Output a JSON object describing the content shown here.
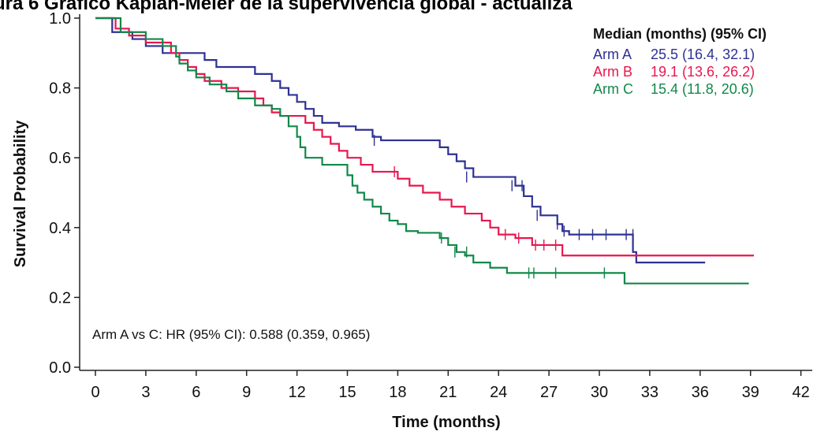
{
  "page_title": "ura 6        Gráfico Kaplan-Meier de la supervivencia global - actualiza",
  "chart_data": {
    "type": "line",
    "xlabel": "Time (months)",
    "ylabel": "Survival Probability",
    "xlim": [
      -1,
      43
    ],
    "ylim": [
      -0.02,
      1.02
    ],
    "x_ticks": [
      0,
      3,
      6,
      9,
      12,
      15,
      18,
      21,
      24,
      27,
      30,
      33,
      36,
      39,
      42
    ],
    "y_ticks": [
      0.0,
      0.2,
      0.4,
      0.6,
      0.8,
      1.0
    ],
    "y_tick_labels": [
      "0.0",
      "0.2",
      "0.4",
      "0.6",
      "0.8",
      "1.0"
    ],
    "legend": {
      "title": "Median (months) (95% CI)",
      "position": "top-right"
    },
    "annotation": "Arm A vs C: HR (95% CI): 0.588 (0.359, 0.965)",
    "series": [
      {
        "name": "Arm A",
        "median_label": "25.5 (16.4, 32.1)",
        "color": "#2e3192",
        "steps": [
          [
            0,
            1.0
          ],
          [
            1.0,
            0.96
          ],
          [
            2.2,
            0.94
          ],
          [
            3.0,
            0.92
          ],
          [
            4.0,
            0.9
          ],
          [
            5.5,
            0.9
          ],
          [
            6.5,
            0.88
          ],
          [
            7.2,
            0.86
          ],
          [
            8.0,
            0.86
          ],
          [
            9.5,
            0.84
          ],
          [
            10.5,
            0.82
          ],
          [
            11.0,
            0.8
          ],
          [
            11.5,
            0.78
          ],
          [
            12.0,
            0.76
          ],
          [
            12.5,
            0.74
          ],
          [
            13.0,
            0.72
          ],
          [
            13.5,
            0.7
          ],
          [
            14.5,
            0.69
          ],
          [
            15.5,
            0.68
          ],
          [
            16.5,
            0.66
          ],
          [
            17.0,
            0.65
          ],
          [
            20.5,
            0.63
          ],
          [
            21.0,
            0.61
          ],
          [
            21.5,
            0.59
          ],
          [
            22.0,
            0.57
          ],
          [
            22.5,
            0.545
          ],
          [
            25.0,
            0.52
          ],
          [
            25.5,
            0.49
          ],
          [
            26.0,
            0.46
          ],
          [
            26.5,
            0.435
          ],
          [
            27.5,
            0.41
          ],
          [
            27.8,
            0.39
          ],
          [
            28.2,
            0.38
          ],
          [
            32.0,
            0.33
          ],
          [
            32.2,
            0.3
          ],
          [
            36.3,
            0.3
          ]
        ],
        "censor": [
          [
            16.6,
            0.65
          ],
          [
            22.1,
            0.545
          ],
          [
            24.8,
            0.52
          ],
          [
            25.4,
            0.52
          ],
          [
            26.3,
            0.435
          ],
          [
            27.5,
            0.41
          ],
          [
            27.9,
            0.39
          ],
          [
            28.8,
            0.38
          ],
          [
            29.6,
            0.38
          ],
          [
            30.4,
            0.38
          ],
          [
            31.6,
            0.38
          ],
          [
            32.0,
            0.38
          ]
        ]
      },
      {
        "name": "Arm B",
        "median_label": "19.1 (13.6, 26.2)",
        "color": "#e8174f",
        "steps": [
          [
            0,
            1.0
          ],
          [
            1.2,
            0.97
          ],
          [
            2.0,
            0.95
          ],
          [
            3.0,
            0.93
          ],
          [
            4.5,
            0.9
          ],
          [
            5.0,
            0.88
          ],
          [
            5.5,
            0.86
          ],
          [
            6.0,
            0.84
          ],
          [
            6.5,
            0.82
          ],
          [
            7.5,
            0.8
          ],
          [
            8.5,
            0.79
          ],
          [
            9.5,
            0.77
          ],
          [
            10.0,
            0.75
          ],
          [
            10.5,
            0.73
          ],
          [
            11.0,
            0.72
          ],
          [
            12.5,
            0.7
          ],
          [
            13.0,
            0.68
          ],
          [
            13.5,
            0.66
          ],
          [
            14.0,
            0.64
          ],
          [
            14.5,
            0.62
          ],
          [
            15.0,
            0.6
          ],
          [
            15.8,
            0.58
          ],
          [
            16.5,
            0.56
          ],
          [
            18.0,
            0.54
          ],
          [
            18.7,
            0.52
          ],
          [
            19.5,
            0.5
          ],
          [
            20.5,
            0.48
          ],
          [
            21.2,
            0.46
          ],
          [
            22.0,
            0.44
          ],
          [
            23.0,
            0.42
          ],
          [
            23.5,
            0.4
          ],
          [
            24.0,
            0.38
          ],
          [
            25.0,
            0.37
          ],
          [
            26.0,
            0.35
          ],
          [
            26.5,
            0.35
          ],
          [
            27.8,
            0.32
          ],
          [
            39.2,
            0.32
          ]
        ],
        "censor": [
          [
            17.8,
            0.56
          ],
          [
            24.4,
            0.38
          ],
          [
            25.2,
            0.37
          ],
          [
            26.2,
            0.35
          ],
          [
            26.7,
            0.35
          ],
          [
            27.4,
            0.35
          ]
        ]
      },
      {
        "name": "Arm C",
        "median_label": "15.4 (11.8, 20.6)",
        "color": "#12884a",
        "steps": [
          [
            0,
            1.0
          ],
          [
            1.5,
            0.96
          ],
          [
            3.0,
            0.94
          ],
          [
            4.0,
            0.92
          ],
          [
            4.8,
            0.89
          ],
          [
            5.0,
            0.87
          ],
          [
            5.5,
            0.85
          ],
          [
            6.0,
            0.83
          ],
          [
            6.8,
            0.81
          ],
          [
            7.8,
            0.79
          ],
          [
            8.5,
            0.77
          ],
          [
            9.5,
            0.75
          ],
          [
            10.5,
            0.74
          ],
          [
            11.0,
            0.72
          ],
          [
            11.5,
            0.69
          ],
          [
            12.0,
            0.66
          ],
          [
            12.2,
            0.63
          ],
          [
            12.5,
            0.6
          ],
          [
            13.5,
            0.58
          ],
          [
            14.5,
            0.58
          ],
          [
            15.0,
            0.55
          ],
          [
            15.3,
            0.52
          ],
          [
            15.6,
            0.5
          ],
          [
            16.0,
            0.48
          ],
          [
            16.5,
            0.46
          ],
          [
            17.0,
            0.44
          ],
          [
            17.5,
            0.42
          ],
          [
            18.0,
            0.41
          ],
          [
            18.5,
            0.39
          ],
          [
            19.2,
            0.385
          ],
          [
            20.5,
            0.37
          ],
          [
            21.0,
            0.35
          ],
          [
            21.5,
            0.33
          ],
          [
            22.0,
            0.32
          ],
          [
            22.5,
            0.3
          ],
          [
            23.5,
            0.285
          ],
          [
            24.5,
            0.27
          ],
          [
            28.5,
            0.27
          ],
          [
            31.5,
            0.24
          ],
          [
            38.9,
            0.24
          ]
        ],
        "censor": [
          [
            20.6,
            0.37
          ],
          [
            21.4,
            0.33
          ],
          [
            22.1,
            0.33
          ],
          [
            25.8,
            0.27
          ],
          [
            26.1,
            0.27
          ],
          [
            27.4,
            0.27
          ],
          [
            30.3,
            0.27
          ]
        ]
      }
    ]
  }
}
